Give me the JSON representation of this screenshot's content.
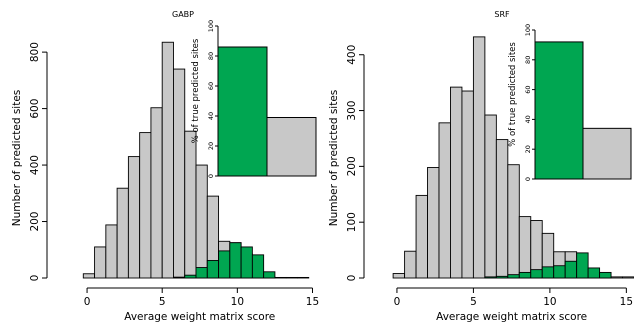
{
  "colors": {
    "all": "#c8c8c8",
    "true": "#00a651",
    "outline": "#000000"
  },
  "chart_data": [
    {
      "type": "bar",
      "title": "GABP",
      "xlabel": "Average weight matrix score",
      "ylabel": "Number of predicted sites",
      "xlim": [
        -2,
        15.5
      ],
      "ylim": [
        0,
        850
      ],
      "xticks": [
        0,
        5,
        10,
        15
      ],
      "yticks": [
        0,
        200,
        400,
        600,
        800
      ],
      "bin_width": 0.75,
      "series": [
        {
          "values": [
            {
              "x0": -0.25,
              "v": 15
            },
            {
              "x0": 0.5,
              "v": 110
            },
            {
              "x0": 1.25,
              "v": 188
            },
            {
              "x0": 2.0,
              "v": 318
            },
            {
              "x0": 2.75,
              "v": 430
            },
            {
              "x0": 3.5,
              "v": 515
            },
            {
              "x0": 4.25,
              "v": 603
            },
            {
              "x0": 5.0,
              "v": 835
            },
            {
              "x0": 5.75,
              "v": 740
            },
            {
              "x0": 6.5,
              "v": 520
            },
            {
              "x0": 7.25,
              "v": 400
            },
            {
              "x0": 8.0,
              "v": 290
            },
            {
              "x0": 8.75,
              "v": 130
            },
            {
              "x0": 9.5,
              "v": 125
            },
            {
              "x0": 10.25,
              "v": 85
            },
            {
              "x0": 11.0,
              "v": 22
            },
            {
              "x0": 11.75,
              "v": 4
            },
            {
              "x0": 12.5,
              "v": 2
            },
            {
              "x0": 13.25,
              "v": 2
            },
            {
              "x0": 14.0,
              "v": 2
            }
          ]
        },
        {
          "values": [
            {
              "x0": 5.75,
              "v": 3
            },
            {
              "x0": 6.5,
              "v": 10
            },
            {
              "x0": 7.25,
              "v": 37
            },
            {
              "x0": 8.0,
              "v": 62
            },
            {
              "x0": 8.75,
              "v": 96
            },
            {
              "x0": 9.5,
              "v": 125
            },
            {
              "x0": 10.25,
              "v": 110
            },
            {
              "x0": 11.0,
              "v": 82
            },
            {
              "x0": 11.75,
              "v": 22
            }
          ]
        }
      ],
      "inset": {
        "ylabel": "% of true predicted sites",
        "ylim": [
          0,
          100
        ],
        "yticks": [
          0,
          20,
          40,
          60,
          80,
          100
        ],
        "values": [
          86,
          39
        ]
      }
    },
    {
      "type": "bar",
      "title": "SRF",
      "xlabel": "Average weight matrix score",
      "ylabel": "Number of predicted sites",
      "xlim": [
        -1.5,
        15.5
      ],
      "ylim": [
        0,
        430
      ],
      "xticks": [
        0,
        5,
        10,
        15
      ],
      "yticks": [
        0,
        100,
        200,
        300,
        400
      ],
      "bin_width": 0.75,
      "series": [
        {
          "values": [
            {
              "x0": -0.25,
              "v": 8
            },
            {
              "x0": 0.5,
              "v": 48
            },
            {
              "x0": 1.25,
              "v": 148
            },
            {
              "x0": 2.0,
              "v": 198
            },
            {
              "x0": 2.75,
              "v": 278
            },
            {
              "x0": 3.5,
              "v": 342
            },
            {
              "x0": 4.25,
              "v": 335
            },
            {
              "x0": 5.0,
              "v": 432
            },
            {
              "x0": 5.75,
              "v": 292
            },
            {
              "x0": 6.5,
              "v": 248
            },
            {
              "x0": 7.25,
              "v": 203
            },
            {
              "x0": 8.0,
              "v": 110
            },
            {
              "x0": 8.75,
              "v": 103
            },
            {
              "x0": 9.5,
              "v": 80
            },
            {
              "x0": 10.25,
              "v": 47
            },
            {
              "x0": 11.0,
              "v": 47
            },
            {
              "x0": 11.75,
              "v": 18
            },
            {
              "x0": 12.5,
              "v": 10
            },
            {
              "x0": 13.25,
              "v": 2
            },
            {
              "x0": 14.0,
              "v": 2
            },
            {
              "x0": 14.75,
              "v": 2
            }
          ]
        },
        {
          "values": [
            {
              "x0": 5.75,
              "v": 2
            },
            {
              "x0": 6.5,
              "v": 3
            },
            {
              "x0": 7.25,
              "v": 6
            },
            {
              "x0": 8.0,
              "v": 10
            },
            {
              "x0": 8.75,
              "v": 15
            },
            {
              "x0": 9.5,
              "v": 20
            },
            {
              "x0": 10.25,
              "v": 22
            },
            {
              "x0": 11.0,
              "v": 30
            },
            {
              "x0": 11.75,
              "v": 45
            },
            {
              "x0": 12.5,
              "v": 18
            },
            {
              "x0": 13.25,
              "v": 10
            }
          ]
        }
      ],
      "inset": {
        "ylabel": "% of true predicted sites",
        "ylim": [
          0,
          100
        ],
        "yticks": [
          0,
          20,
          40,
          60,
          80,
          100
        ],
        "values": [
          92,
          34
        ]
      }
    }
  ]
}
